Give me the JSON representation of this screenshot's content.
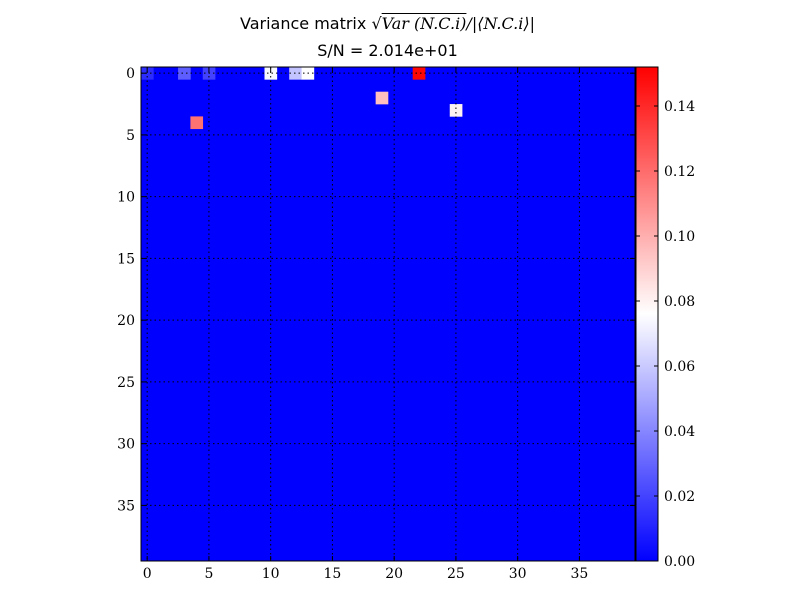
{
  "title": {
    "prefix": "Variance matrix ",
    "sqrt_symbol": "√",
    "sqrt_body": "Var (N.C.i)",
    "suffix": "/|⟨N.C.i⟩|",
    "subtitle": "S/N = 2.014e+01"
  },
  "chart_data": {
    "type": "heatmap",
    "title": "Variance matrix √Var(N.C.i)/|⟨N.C.i⟩|",
    "subtitle": "S/N = 2.014e+01",
    "rows": 40,
    "cols": 40,
    "background_value": 0.0,
    "grid": true,
    "x_ticks": [
      0,
      5,
      10,
      15,
      20,
      25,
      30,
      35
    ],
    "y_ticks": [
      0,
      5,
      10,
      15,
      20,
      25,
      30,
      35
    ],
    "x_tick_labels": [
      "0",
      "5",
      "10",
      "15",
      "20",
      "25",
      "30",
      "35"
    ],
    "y_tick_labels": [
      "0",
      "5",
      "10",
      "15",
      "20",
      "25",
      "30",
      "35"
    ],
    "colormap": "bwr",
    "colorbar": {
      "min": 0.0,
      "max": 0.152,
      "ticks": [
        0.0,
        0.02,
        0.04,
        0.06,
        0.08,
        0.1,
        0.12,
        0.14
      ],
      "tick_labels": [
        "0.00",
        "0.02",
        "0.04",
        "0.06",
        "0.08",
        "0.10",
        "0.12",
        "0.14"
      ]
    },
    "cells": [
      {
        "row": 0,
        "col": 0,
        "value": 0.013
      },
      {
        "row": 0,
        "col": 3,
        "value": 0.028
      },
      {
        "row": 0,
        "col": 5,
        "value": 0.02
      },
      {
        "row": 0,
        "col": 10,
        "value": 0.074
      },
      {
        "row": 0,
        "col": 12,
        "value": 0.058
      },
      {
        "row": 0,
        "col": 13,
        "value": 0.076
      },
      {
        "row": 0,
        "col": 22,
        "value": 0.15
      },
      {
        "row": 2,
        "col": 19,
        "value": 0.095
      },
      {
        "row": 3,
        "col": 25,
        "value": 0.08
      },
      {
        "row": 4,
        "col": 4,
        "value": 0.118
      }
    ]
  }
}
